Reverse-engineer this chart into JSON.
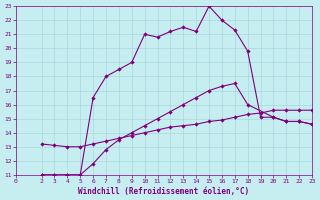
{
  "xlabel": "Windchill (Refroidissement éolien,°C)",
  "background_color": "#c6eef0",
  "line_color": "#800080",
  "grid_color": "#a8d8dc",
  "xlim": [
    0,
    23
  ],
  "ylim": [
    11,
    23
  ],
  "xticks": [
    0,
    2,
    3,
    4,
    5,
    6,
    7,
    8,
    9,
    10,
    11,
    12,
    13,
    14,
    15,
    16,
    17,
    18,
    19,
    20,
    21,
    22,
    23
  ],
  "yticks": [
    11,
    12,
    13,
    14,
    15,
    16,
    17,
    18,
    19,
    20,
    21,
    22,
    23
  ],
  "series": [
    {
      "x": [
        2,
        3,
        4,
        5,
        6,
        7,
        8,
        9,
        10,
        11,
        12,
        13,
        14,
        15,
        16,
        17,
        18,
        19,
        20,
        21,
        22,
        23
      ],
      "y": [
        11,
        11,
        11,
        11,
        16.5,
        18.0,
        18.5,
        19.0,
        21.0,
        20.8,
        21.2,
        21.5,
        21.2,
        23.0,
        22.0,
        21.3,
        19.8,
        15.1,
        15.1,
        14.8,
        14.8,
        14.6
      ],
      "has_markers": true
    },
    {
      "x": [
        2,
        3,
        4,
        5,
        6,
        7,
        8,
        9,
        10,
        11,
        12,
        13,
        14,
        15,
        16,
        17,
        18,
        20,
        21,
        22,
        23
      ],
      "y": [
        11,
        11,
        11,
        11,
        11.8,
        12.8,
        13.5,
        14.0,
        14.5,
        15.0,
        15.5,
        16.0,
        16.5,
        17.0,
        17.3,
        17.5,
        16.0,
        15.1,
        14.8,
        14.8,
        14.6
      ],
      "has_markers": true
    },
    {
      "x": [
        2,
        3,
        4,
        5,
        6,
        7,
        8,
        9,
        10,
        11,
        12,
        13,
        14,
        15,
        16,
        17,
        18,
        19,
        20,
        21,
        22,
        23
      ],
      "y": [
        13.2,
        13.1,
        13.0,
        13.0,
        13.2,
        13.4,
        13.6,
        13.8,
        14.0,
        14.2,
        14.4,
        14.5,
        14.6,
        14.8,
        14.9,
        15.1,
        15.3,
        15.4,
        15.6,
        15.6,
        15.6,
        15.6
      ],
      "has_markers": true
    }
  ]
}
